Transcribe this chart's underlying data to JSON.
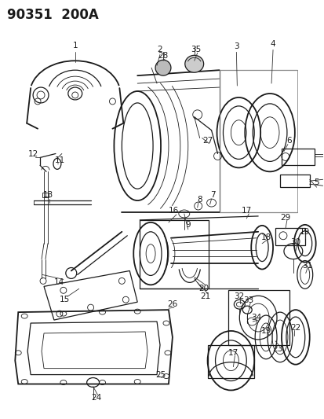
{
  "title": "90351  200A",
  "bg_color": "#ffffff",
  "line_color": "#1a1a1a",
  "fig_width": 4.13,
  "fig_height": 5.33,
  "dpi": 100,
  "lw_thin": 0.6,
  "lw_med": 0.9,
  "lw_thick": 1.3,
  "label_fontsize": 7.0,
  "title_fontsize": 12
}
